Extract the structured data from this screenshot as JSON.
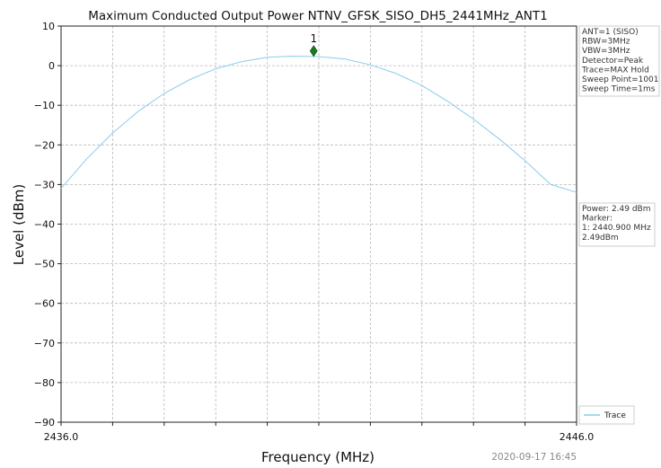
{
  "chart_data": {
    "type": "line",
    "title": "Maximum Conducted Output Power NTNV_GFSK_SISO_DH5_2441MHz_ANT1",
    "xlabel": "Frequency (MHz)",
    "ylabel": "Level (dBm)",
    "xlim": [
      2436.0,
      2446.0
    ],
    "ylim": [
      -90,
      10
    ],
    "x_tick_labels": [
      "2436.0",
      "2446.0"
    ],
    "x_minor_ticks": [
      2437,
      2438,
      2439,
      2440,
      2441,
      2442,
      2443,
      2444,
      2445
    ],
    "y_ticks": [
      10,
      0,
      -10,
      -20,
      -30,
      -40,
      -50,
      -60,
      -70,
      -80,
      -90
    ],
    "y_tick_labels": [
      "10",
      "0",
      "−10",
      "−20",
      "−30",
      "−40",
      "−50",
      "−60",
      "−70",
      "−80",
      "−90"
    ],
    "grid": true,
    "series": [
      {
        "name": "Trace",
        "color": "#87ceeb",
        "x": [
          2436.0,
          2436.5,
          2437.0,
          2437.5,
          2438.0,
          2438.5,
          2439.0,
          2439.5,
          2440.0,
          2440.5,
          2441.0,
          2441.5,
          2442.0,
          2442.5,
          2443.0,
          2443.5,
          2444.0,
          2444.5,
          2445.0,
          2445.5,
          2446.0
        ],
        "y": [
          -31.0,
          -23.5,
          -17.0,
          -11.5,
          -7.0,
          -3.5,
          -0.8,
          1.0,
          2.1,
          2.4,
          2.3,
          1.7,
          0.2,
          -2.0,
          -5.0,
          -9.0,
          -13.5,
          -18.5,
          -24.0,
          -30.0,
          -32.0
        ]
      }
    ],
    "markers": [
      {
        "label": "1",
        "x": 2440.9,
        "y": 3.7
      }
    ],
    "info_box": [
      "ANT=1 (SISO)",
      "RBW=3MHz",
      "VBW=3MHz",
      "Detector=Peak",
      "Trace=MAX Hold",
      "Sweep Point=1001",
      "Sweep Time=1ms"
    ],
    "marker_box": [
      "Power: 2.49 dBm",
      "Marker:",
      "1: 2440.900 MHz",
      "   2.49dBm"
    ],
    "legend": {
      "entries": [
        "Trace"
      ],
      "placement": "bottom-right outside plot"
    },
    "timestamp": "2020-09-17 16:45"
  }
}
